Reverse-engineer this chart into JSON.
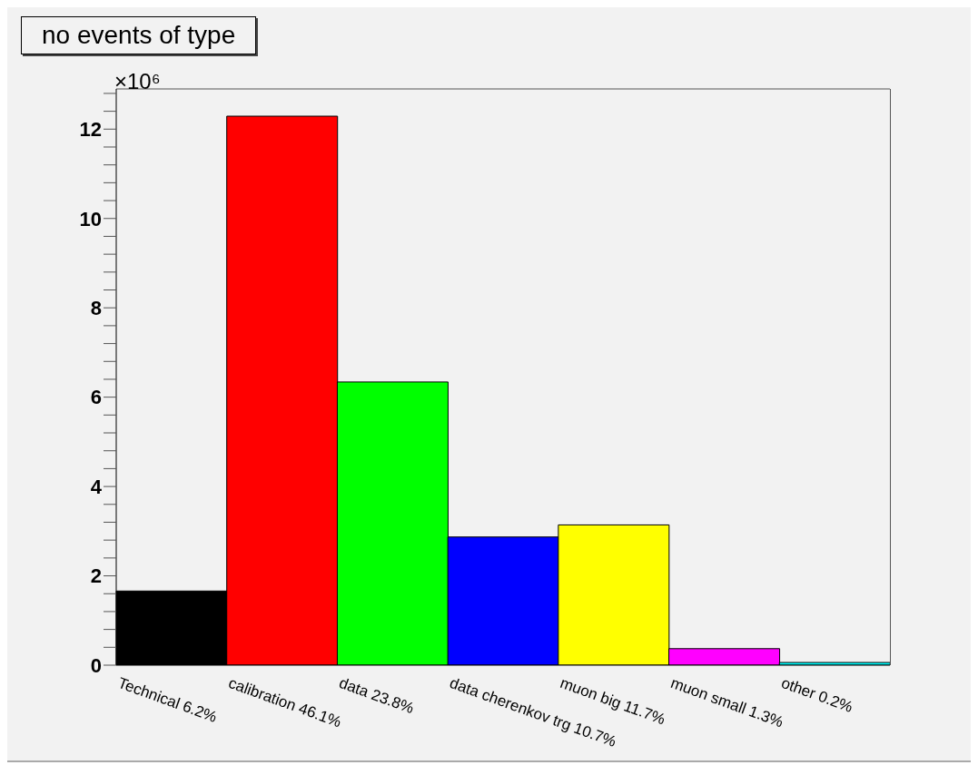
{
  "chart_data": {
    "type": "bar",
    "title": "no events of type",
    "ylabel": "×10⁶",
    "categories": [
      "Technical 6.2%",
      "calibration 46.1%",
      "data 23.8%",
      "data cherenkov trg 10.7%",
      "muon big 11.7%",
      "muon small 1.3%",
      "other 0.2%"
    ],
    "values": [
      1.66,
      12.29,
      6.34,
      2.87,
      3.14,
      0.37,
      0.06
    ],
    "colors": [
      "#000000",
      "#ff0000",
      "#00ff00",
      "#0000ff",
      "#ffff00",
      "#ff00ff",
      "#00ffff"
    ],
    "ylim": [
      0,
      12.9
    ],
    "yticks": [
      0,
      {
        "value": 0.4,
        "label": null
      },
      {
        "value": 0.8,
        "label": null
      },
      {
        "value": 1.2,
        "label": null
      },
      {
        "value": 1.6,
        "label": null
      },
      2,
      {
        "value": 2.4,
        "label": null
      },
      {
        "value": 2.8,
        "label": null
      },
      {
        "value": 3.2,
        "label": null
      },
      {
        "value": 3.6,
        "label": null
      },
      4,
      {
        "value": 4.4,
        "label": null
      },
      {
        "value": 4.8,
        "label": null
      },
      {
        "value": 5.2,
        "label": null
      },
      {
        "value": 5.6,
        "label": null
      },
      6,
      {
        "value": 6.4,
        "label": null
      },
      {
        "value": 6.8,
        "label": null
      },
      {
        "value": 7.2,
        "label": null
      },
      {
        "value": 7.6,
        "label": null
      },
      8,
      {
        "value": 8.4,
        "label": null
      },
      {
        "value": 8.8,
        "label": null
      },
      {
        "value": 9.2,
        "label": null
      },
      {
        "value": 9.6,
        "label": null
      },
      10,
      {
        "value": 10.4,
        "label": null
      },
      {
        "value": 10.8,
        "label": null
      },
      {
        "value": 11.2,
        "label": null
      },
      {
        "value": 11.6,
        "label": null
      },
      12,
      {
        "value": 12.4,
        "label": null
      },
      {
        "value": 12.8,
        "label": null
      }
    ],
    "grid": false,
    "legend": false
  }
}
